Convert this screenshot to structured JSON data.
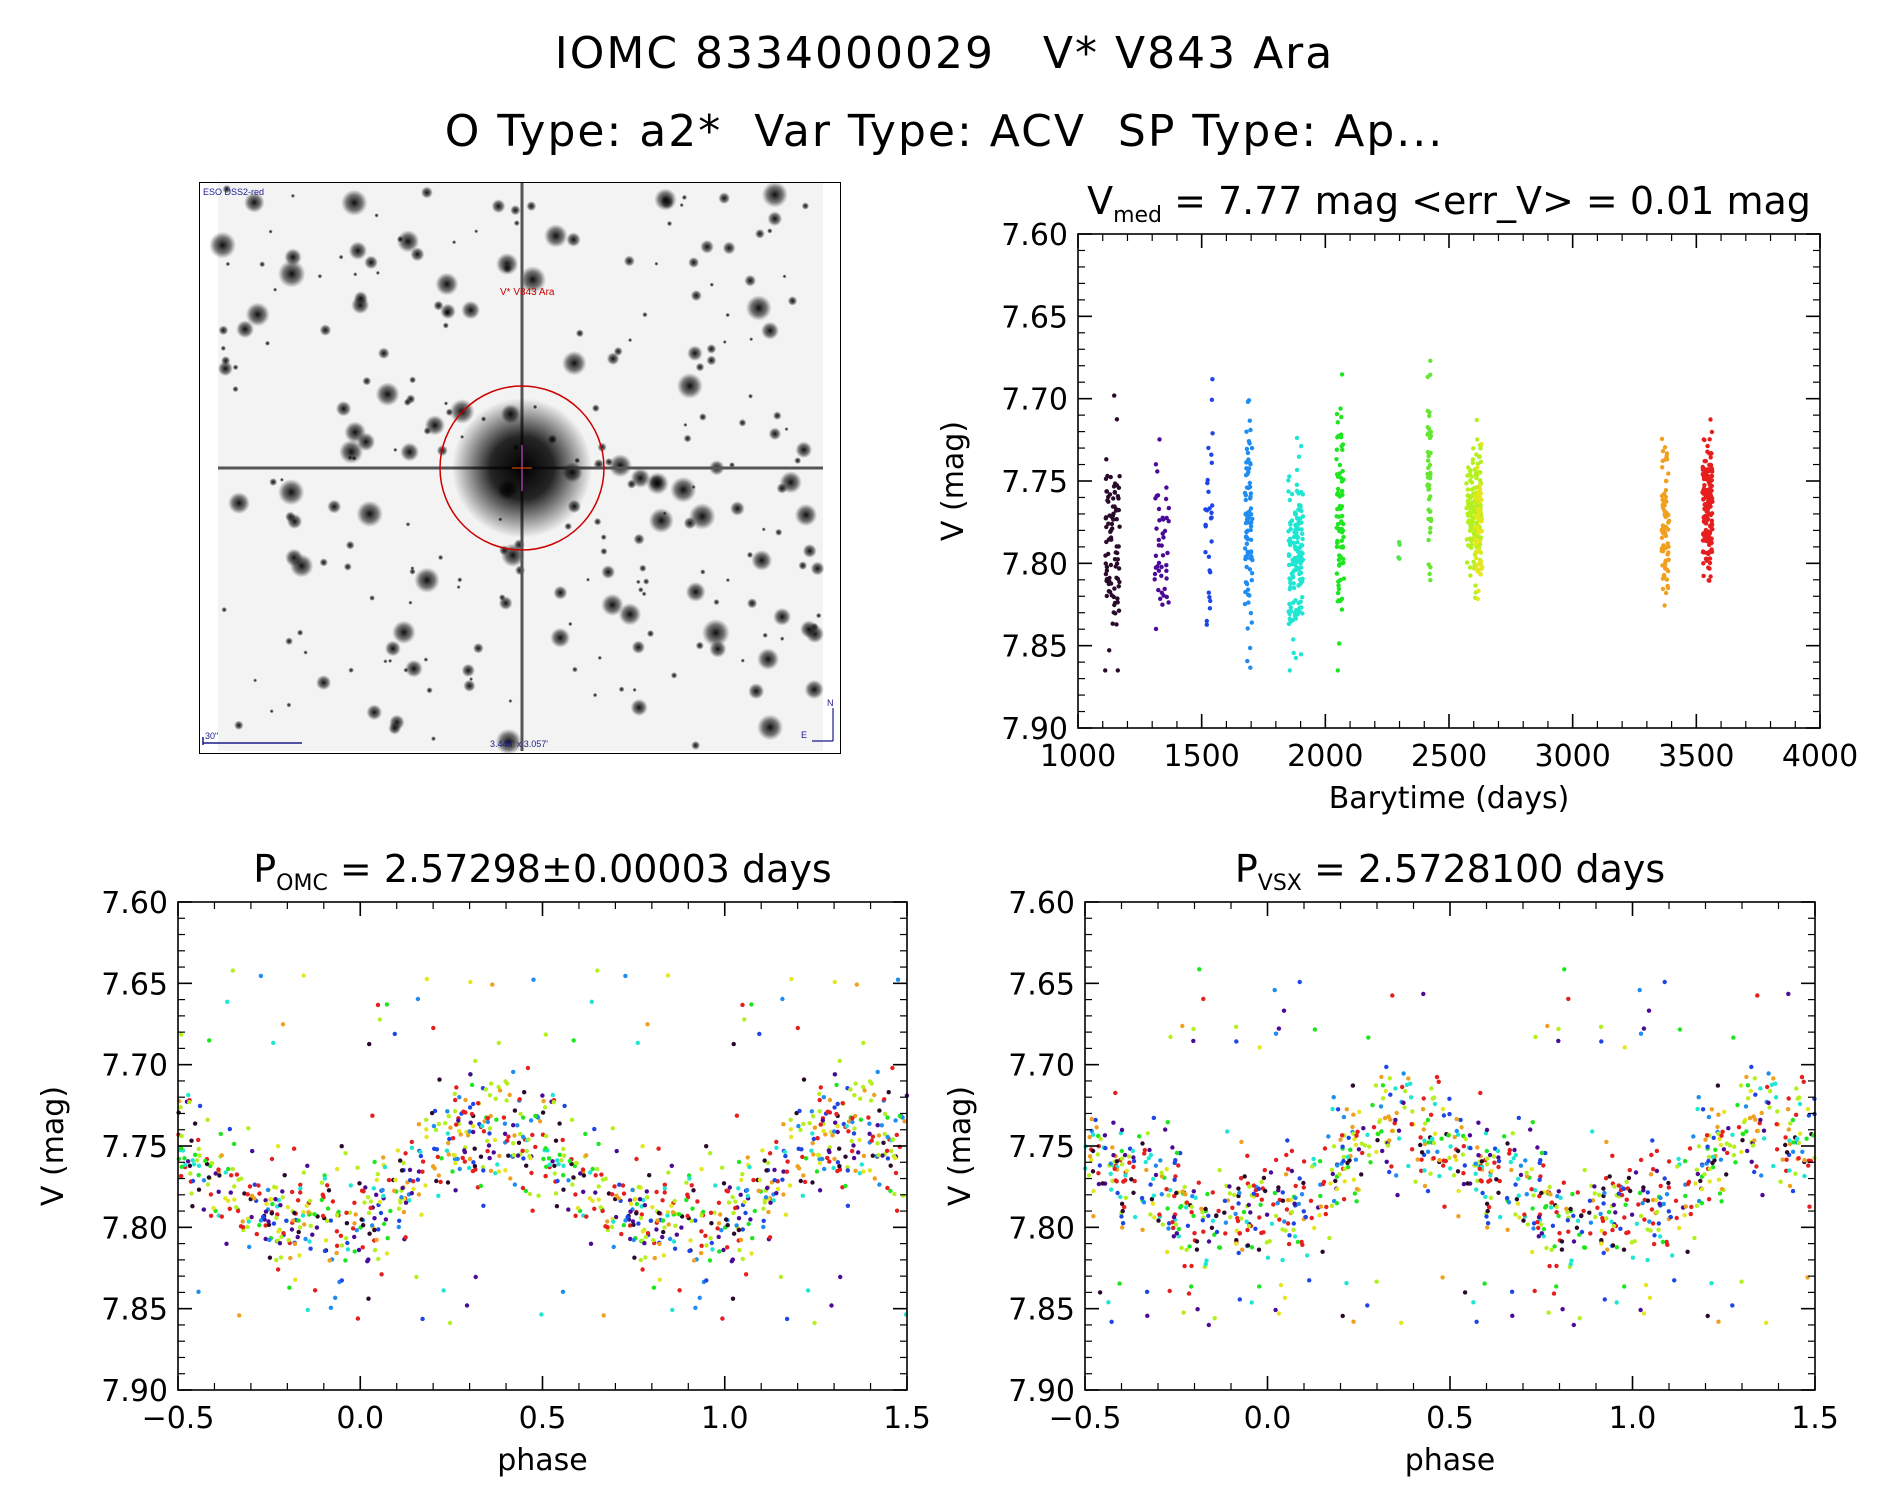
{
  "header": {
    "line1": "IOMC 8334000029   V* V843 Ara",
    "line2": "O Type: a2*  Var Type: ACV  SP Type: Ap..."
  },
  "finder_chart": {
    "survey_label": "ESO DSS2-red",
    "target_label": "V* V843 Ara",
    "scale_label": "30\"",
    "fov_label": "3.448' x 3.057'",
    "compass_north": "N",
    "compass_east": "E",
    "circle_color": "#cc0000"
  },
  "chart_data": [
    {
      "id": "light-curve",
      "type": "scatter",
      "title_main": "V",
      "title_sub": "med",
      "title_rest": " = 7.77 mag <err_V> = 0.01 mag",
      "xlabel": "Barytime (days)",
      "ylabel": "V (mag)",
      "xlim": [
        1000,
        4000
      ],
      "ylim": [
        7.9,
        7.6
      ],
      "y_inverted": true,
      "xticks": [
        1000,
        1500,
        2000,
        2500,
        3000,
        3500,
        4000
      ],
      "yticks": [
        "7.60",
        "7.65",
        "7.70",
        "7.75",
        "7.80",
        "7.85",
        "7.90"
      ],
      "grid": false,
      "clusters": [
        {
          "x_center": 1140,
          "x_width": 60,
          "mean": 7.785,
          "sd": 0.03,
          "n": 90,
          "color": "#2a0a2a"
        },
        {
          "x_center": 1340,
          "x_width": 60,
          "mean": 7.785,
          "sd": 0.025,
          "n": 45,
          "color": "#4b0a96"
        },
        {
          "x_center": 1530,
          "x_width": 30,
          "mean": 7.765,
          "sd": 0.03,
          "n": 30,
          "color": "#1e46e6"
        },
        {
          "x_center": 1690,
          "x_width": 30,
          "mean": 7.775,
          "sd": 0.04,
          "n": 90,
          "color": "#1e8cf0"
        },
        {
          "x_center": 1880,
          "x_width": 60,
          "mean": 7.795,
          "sd": 0.025,
          "n": 150,
          "color": "#1ee6d2"
        },
        {
          "x_center": 2060,
          "x_width": 30,
          "mean": 7.77,
          "sd": 0.035,
          "n": 80,
          "color": "#1ee61e"
        },
        {
          "x_center": 2300,
          "x_width": 10,
          "mean": 7.795,
          "sd": 0.004,
          "n": 4,
          "color": "#50e650"
        },
        {
          "x_center": 2420,
          "x_width": 15,
          "mean": 7.74,
          "sd": 0.03,
          "n": 45,
          "color": "#64e632"
        },
        {
          "x_center": 2600,
          "x_width": 60,
          "mean": 7.77,
          "sd": 0.02,
          "n": 160,
          "color": "#b4f01e"
        },
        {
          "x_center": 2620,
          "x_width": 30,
          "mean": 7.78,
          "sd": 0.02,
          "n": 60,
          "color": "#e6e61e"
        },
        {
          "x_center": 3375,
          "x_width": 30,
          "mean": 7.77,
          "sd": 0.025,
          "n": 80,
          "color": "#f0a01e"
        },
        {
          "x_center": 3545,
          "x_width": 40,
          "mean": 7.765,
          "sd": 0.02,
          "n": 160,
          "color": "#e61e1e"
        }
      ]
    },
    {
      "id": "phase-omc",
      "type": "scatter",
      "title_main": "P",
      "title_sub": "OMC",
      "title_rest": " = 2.57298±0.00003 days",
      "xlabel": "phase",
      "ylabel": "V (mag)",
      "xlim": [
        -0.5,
        1.5
      ],
      "ylim": [
        7.9,
        7.6
      ],
      "y_inverted": true,
      "xticks": [
        "−0.5",
        "0.0",
        "0.5",
        "1.0",
        "1.5"
      ],
      "yticks": [
        "7.60",
        "7.65",
        "7.70",
        "7.75",
        "7.80",
        "7.85",
        "7.90"
      ],
      "grid": false,
      "shape": [
        [
          0.0,
          7.79
        ],
        [
          0.08,
          7.785
        ],
        [
          0.12,
          7.78
        ],
        [
          0.15,
          7.765
        ],
        [
          0.22,
          7.75
        ],
        [
          0.3,
          7.735
        ],
        [
          0.36,
          7.74
        ],
        [
          0.42,
          7.745
        ],
        [
          0.5,
          7.755
        ],
        [
          0.58,
          7.765
        ],
        [
          0.65,
          7.775
        ],
        [
          0.7,
          7.785
        ],
        [
          0.78,
          7.795
        ],
        [
          0.85,
          7.795
        ],
        [
          0.92,
          7.79
        ],
        [
          1.0,
          7.79
        ]
      ],
      "phase_offset": 0.0,
      "scatter_sd": 0.017,
      "n_per_cycle": 560,
      "colors": [
        "#2a0a2a",
        "#4b0a96",
        "#1e46e6",
        "#1e8cf0",
        "#1ee6d2",
        "#1ee61e",
        "#b4f01e",
        "#e6e61e",
        "#f0a01e",
        "#e61e1e",
        "#e61e1e",
        "#b4f01e"
      ]
    },
    {
      "id": "phase-vsx",
      "type": "scatter",
      "title_main": "P",
      "title_sub": "VSX",
      "title_rest": " = 2.5728100 days",
      "xlabel": "phase",
      "ylabel": "V (mag)",
      "xlim": [
        -0.5,
        1.5
      ],
      "ylim": [
        7.9,
        7.6
      ],
      "y_inverted": true,
      "xticks": [
        "−0.5",
        "0.0",
        "0.5",
        "1.0",
        "1.5"
      ],
      "yticks": [
        "7.60",
        "7.65",
        "7.70",
        "7.75",
        "7.80",
        "7.85",
        "7.90"
      ],
      "grid": false,
      "shape": [
        [
          0.0,
          7.79
        ],
        [
          0.08,
          7.785
        ],
        [
          0.12,
          7.78
        ],
        [
          0.15,
          7.765
        ],
        [
          0.22,
          7.75
        ],
        [
          0.3,
          7.735
        ],
        [
          0.36,
          7.74
        ],
        [
          0.42,
          7.745
        ],
        [
          0.5,
          7.755
        ],
        [
          0.58,
          7.765
        ],
        [
          0.65,
          7.775
        ],
        [
          0.7,
          7.785
        ],
        [
          0.78,
          7.795
        ],
        [
          0.85,
          7.795
        ],
        [
          0.92,
          7.79
        ],
        [
          1.0,
          7.79
        ]
      ],
      "phase_offset": -0.02,
      "scatter_sd": 0.017,
      "n_per_cycle": 560,
      "colors": [
        "#2a0a2a",
        "#4b0a96",
        "#1e46e6",
        "#1e8cf0",
        "#1ee6d2",
        "#1ee61e",
        "#b4f01e",
        "#e6e61e",
        "#f0a01e",
        "#e61e1e",
        "#e61e1e",
        "#b4f01e"
      ]
    }
  ]
}
